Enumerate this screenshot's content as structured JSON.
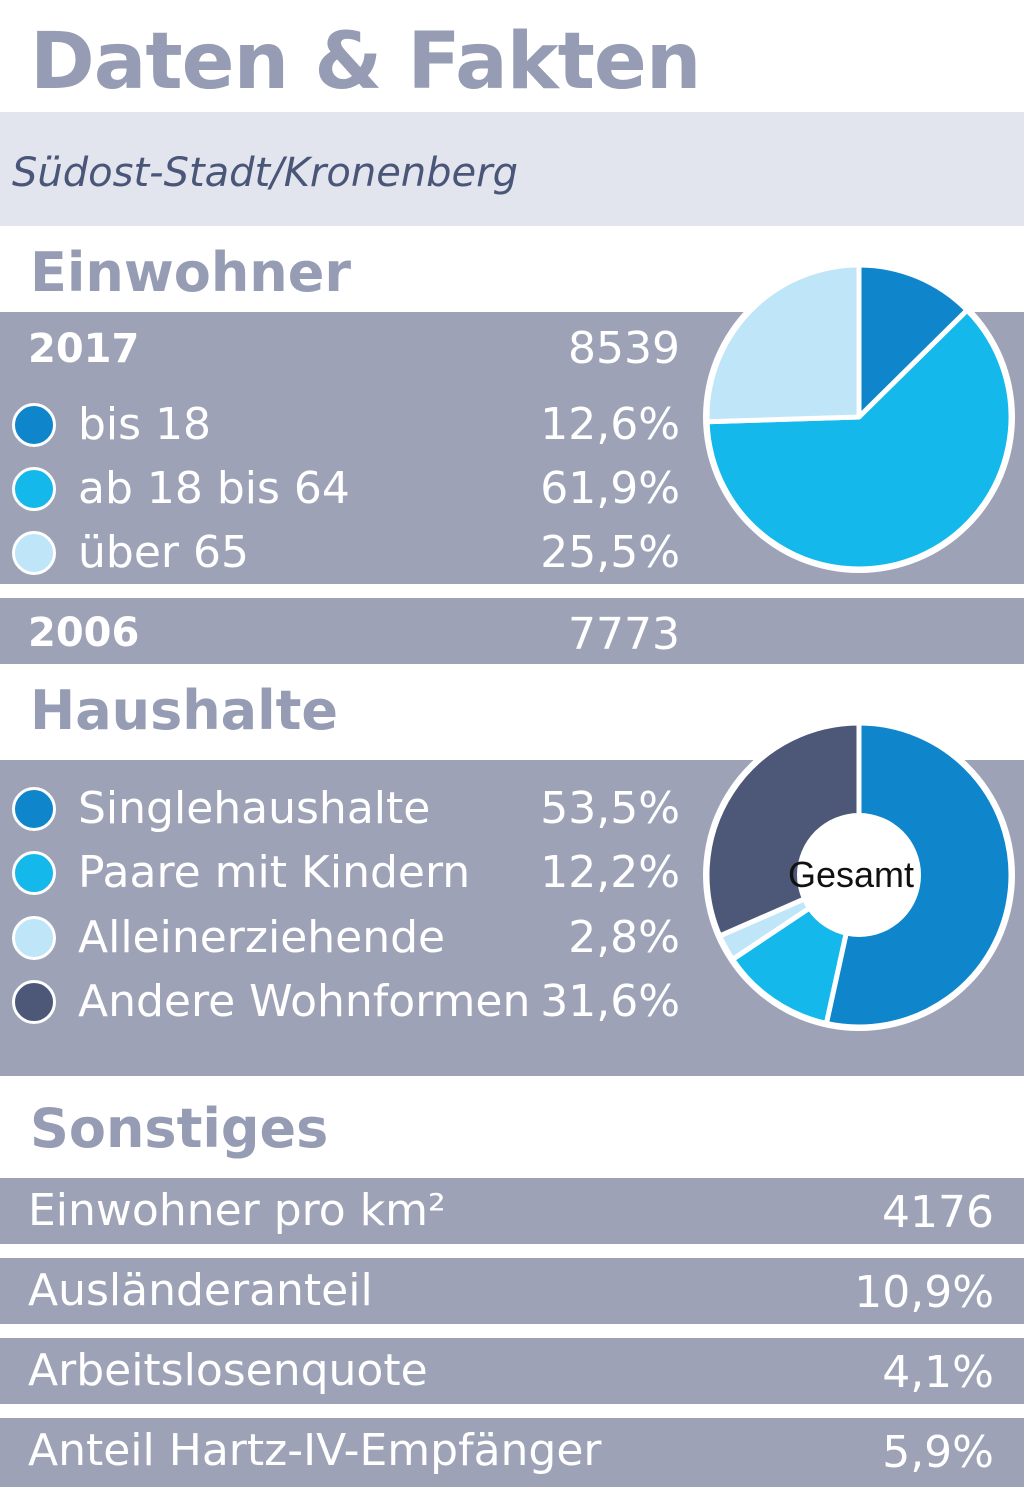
{
  "header": {
    "title": "Daten & Fakten",
    "subtitle": "Südost-Stadt/Kronenberg"
  },
  "einwohner": {
    "heading": "Einwohner",
    "year_2017": "2017",
    "total_2017": "8539",
    "items": [
      {
        "label": "bis 18",
        "value": "12,6%",
        "color": "#0f86cc"
      },
      {
        "label": "ab 18 bis 64",
        "value": "61,9%",
        "color": "#14b8ea"
      },
      {
        "label": "über 65",
        "value": "25,5%",
        "color": "#bfe5f8"
      }
    ],
    "year_2006": "2006",
    "total_2006": "7773"
  },
  "haushalte": {
    "heading": "Haushalte",
    "center_label": "Gesamt",
    "items": [
      {
        "label": "Singlehaushalte",
        "value": "53,5%",
        "color": "#0f86cc"
      },
      {
        "label": "Paare mit Kindern",
        "value": "12,2%",
        "color": "#14b8ea"
      },
      {
        "label": "Alleinerziehende",
        "value": "2,8%",
        "color": "#bfe5f8"
      },
      {
        "label": "Andere Wohnformen",
        "value": "31,6%",
        "color": "#4d5878"
      }
    ]
  },
  "sonstiges": {
    "heading": "Sonstiges",
    "rows": [
      {
        "label": "Einwohner pro km²",
        "value": "4176"
      },
      {
        "label": "Ausländeranteil",
        "value": "10,9%"
      },
      {
        "label": "Arbeitslosenquote",
        "value": "4,1%"
      },
      {
        "label": "Anteil Hartz-IV-Empfänger",
        "value": "5,9%"
      }
    ]
  },
  "chart_data": [
    {
      "type": "pie",
      "categories": [
        "bis 18",
        "ab 18 bis 64",
        "über 65"
      ],
      "values": [
        12.6,
        61.9,
        25.5
      ],
      "colors": [
        "#0f86cc",
        "#14b8ea",
        "#bfe5f8"
      ]
    },
    {
      "type": "pie",
      "categories": [
        "Singlehaushalte",
        "Paare mit Kindern",
        "Alleinerziehende",
        "Andere Wohnformen"
      ],
      "values": [
        53.5,
        12.2,
        2.8,
        31.6
      ],
      "colors": [
        "#0f86cc",
        "#14b8ea",
        "#bfe5f8",
        "#4d5878"
      ]
    }
  ]
}
